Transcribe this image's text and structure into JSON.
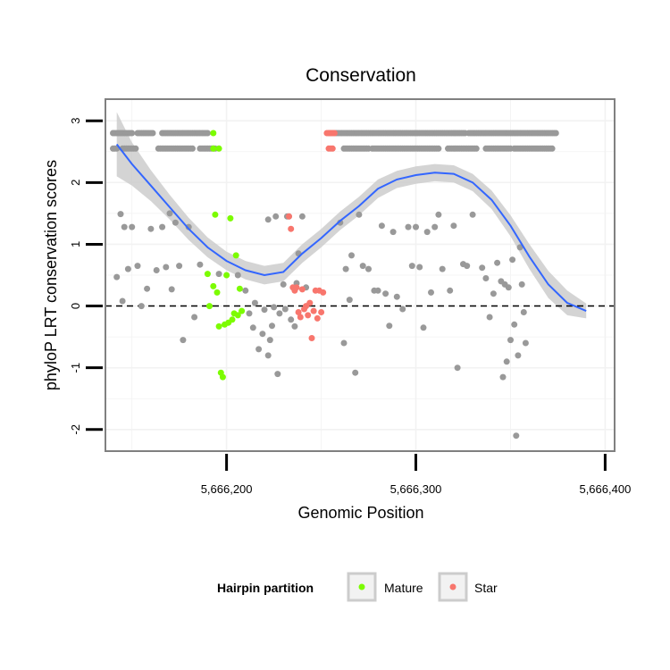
{
  "chart_data": {
    "type": "scatter",
    "title": "Conservation",
    "xlabel": "Genomic Position",
    "ylabel": "phyloP LRT conservation scores",
    "xlim": [
      5666136,
      5666405
    ],
    "ylim": [
      -2.35,
      3.35
    ],
    "x_ticks": [
      5666200,
      5666300,
      5666400
    ],
    "x_tick_labels": [
      "5,666,200",
      "5,666,300",
      "5,666,400"
    ],
    "y_ticks": [
      -2,
      -1,
      0,
      1,
      2,
      3
    ],
    "y_tick_labels": [
      "-2",
      "-1",
      "0",
      "1",
      "2",
      "3"
    ],
    "reference_line": {
      "y": 0,
      "style": "dashed"
    },
    "colors": {
      "other": "#999999",
      "mature": "#7CFC00",
      "star": "#F8766D",
      "smooth": "#3366FF",
      "ribbon": "#CCCCCC",
      "grid": "#F2F2F2",
      "border": "#808080",
      "dashed": "#000000"
    },
    "legend": {
      "title": "Hairpin partition",
      "position": "bottom",
      "entries": [
        {
          "label": "Mature",
          "color": "#7CFC00"
        },
        {
          "label": "Star",
          "color": "#F8766D"
        }
      ]
    },
    "top_row_1": {
      "y": 2.8,
      "segments": [
        [
          5666140,
          5666150
        ],
        [
          5666153,
          5666161
        ],
        [
          5666166,
          5666190
        ],
        [
          5666254,
          5666326
        ],
        [
          5666328,
          5666374
        ]
      ],
      "star_segment": [
        5666253,
        5666257
      ],
      "mature_x": 5666193
    },
    "top_row_2": {
      "y": 2.55,
      "segments": [
        [
          5666140,
          5666142
        ],
        [
          5666145,
          5666152
        ],
        [
          5666164,
          5666170
        ],
        [
          5666171,
          5666182
        ],
        [
          5666186,
          5666194
        ],
        [
          5666262,
          5666275
        ],
        [
          5666277,
          5666288
        ],
        [
          5666289,
          5666312
        ],
        [
          5666317,
          5666332
        ],
        [
          5666337,
          5666350
        ],
        [
          5666352,
          5666372
        ]
      ],
      "star_segment": [
        5666254,
        5666256
      ],
      "mature_x": [
        5666193,
        5666196
      ]
    },
    "series": [
      {
        "name": "Other",
        "points": [
          [
            5666142,
            0.47
          ],
          [
            5666144,
            1.49
          ],
          [
            5666146,
            1.28
          ],
          [
            5666148,
            0.6
          ],
          [
            5666145,
            0.08
          ],
          [
            5666150,
            1.28
          ],
          [
            5666153,
            0.65
          ],
          [
            5666155,
            0.0
          ],
          [
            5666158,
            0.28
          ],
          [
            5666160,
            1.25
          ],
          [
            5666163,
            0.58
          ],
          [
            5666166,
            1.28
          ],
          [
            5666168,
            0.63
          ],
          [
            5666170,
            1.5
          ],
          [
            5666171,
            0.27
          ],
          [
            5666173,
            1.35
          ],
          [
            5666175,
            0.65
          ],
          [
            5666177,
            -0.55
          ],
          [
            5666180,
            1.28
          ],
          [
            5666183,
            -0.18
          ],
          [
            5666186,
            0.67
          ],
          [
            5666196,
            0.52
          ],
          [
            5666206,
            0.5
          ],
          [
            5666210,
            0.25
          ],
          [
            5666212,
            -0.12
          ],
          [
            5666214,
            -0.35
          ],
          [
            5666215,
            0.05
          ],
          [
            5666217,
            -0.7
          ],
          [
            5666219,
            -0.45
          ],
          [
            5666220,
            -0.06
          ],
          [
            5666222,
            1.4
          ],
          [
            5666222,
            -0.8
          ],
          [
            5666223,
            -0.55
          ],
          [
            5666224,
            -0.32
          ],
          [
            5666225,
            -0.02
          ],
          [
            5666226,
            1.45
          ],
          [
            5666227,
            -1.1
          ],
          [
            5666228,
            -0.12
          ],
          [
            5666230,
            0.35
          ],
          [
            5666231,
            -0.05
          ],
          [
            5666232,
            1.45
          ],
          [
            5666233,
            1.45
          ],
          [
            5666234,
            -0.22
          ],
          [
            5666236,
            -0.33
          ],
          [
            5666237,
            0.37
          ],
          [
            5666238,
            0.85
          ],
          [
            5666240,
            1.45
          ],
          [
            5666242,
            0.3
          ],
          [
            5666260,
            1.35
          ],
          [
            5666262,
            -0.6
          ],
          [
            5666263,
            0.6
          ],
          [
            5666265,
            0.1
          ],
          [
            5666266,
            0.82
          ],
          [
            5666268,
            -1.08
          ],
          [
            5666270,
            1.48
          ],
          [
            5666272,
            0.65
          ],
          [
            5666275,
            0.6
          ],
          [
            5666278,
            0.25
          ],
          [
            5666280,
            0.25
          ],
          [
            5666282,
            1.3
          ],
          [
            5666284,
            0.2
          ],
          [
            5666286,
            -0.32
          ],
          [
            5666288,
            1.2
          ],
          [
            5666290,
            0.15
          ],
          [
            5666293,
            -0.05
          ],
          [
            5666296,
            1.28
          ],
          [
            5666298,
            0.65
          ],
          [
            5666300,
            1.28
          ],
          [
            5666302,
            0.63
          ],
          [
            5666304,
            -0.35
          ],
          [
            5666306,
            1.2
          ],
          [
            5666308,
            0.22
          ],
          [
            5666310,
            1.28
          ],
          [
            5666312,
            1.48
          ],
          [
            5666314,
            0.6
          ],
          [
            5666318,
            0.25
          ],
          [
            5666320,
            1.3
          ],
          [
            5666322,
            -1.0
          ],
          [
            5666325,
            0.68
          ],
          [
            5666327,
            0.65
          ],
          [
            5666330,
            1.48
          ],
          [
            5666335,
            0.62
          ],
          [
            5666337,
            0.45
          ],
          [
            5666339,
            -0.18
          ],
          [
            5666341,
            0.2
          ],
          [
            5666343,
            0.7
          ],
          [
            5666345,
            0.4
          ],
          [
            5666346,
            -1.15
          ],
          [
            5666347,
            0.35
          ],
          [
            5666348,
            -0.9
          ],
          [
            5666349,
            0.3
          ],
          [
            5666350,
            -0.55
          ],
          [
            5666351,
            0.75
          ],
          [
            5666352,
            -0.3
          ],
          [
            5666353,
            -2.1
          ],
          [
            5666354,
            -0.8
          ],
          [
            5666355,
            0.95
          ],
          [
            5666356,
            0.35
          ],
          [
            5666357,
            -0.1
          ],
          [
            5666358,
            -0.6
          ]
        ]
      },
      {
        "name": "Mature",
        "points": [
          [
            5666190,
            0.52
          ],
          [
            5666191,
            0.0
          ],
          [
            5666193,
            0.32
          ],
          [
            5666194,
            1.48
          ],
          [
            5666195,
            0.22
          ],
          [
            5666196,
            -0.33
          ],
          [
            5666197,
            -1.08
          ],
          [
            5666198,
            -1.15
          ],
          [
            5666199,
            -0.3
          ],
          [
            5666200,
            0.5
          ],
          [
            5666201,
            -0.27
          ],
          [
            5666202,
            1.42
          ],
          [
            5666203,
            -0.22
          ],
          [
            5666204,
            -0.12
          ],
          [
            5666205,
            0.82
          ],
          [
            5666206,
            -0.15
          ],
          [
            5666207,
            0.28
          ],
          [
            5666208,
            -0.08
          ]
        ]
      },
      {
        "name": "Star",
        "points": [
          [
            5666233,
            1.45
          ],
          [
            5666234,
            1.25
          ],
          [
            5666235,
            0.3
          ],
          [
            5666236,
            0.25
          ],
          [
            5666237,
            0.3
          ],
          [
            5666238,
            -0.1
          ],
          [
            5666239,
            -0.18
          ],
          [
            5666240,
            0.27
          ],
          [
            5666241,
            -0.05
          ],
          [
            5666242,
            0.0
          ],
          [
            5666243,
            -0.15
          ],
          [
            5666244,
            0.05
          ],
          [
            5666245,
            -0.52
          ],
          [
            5666246,
            -0.08
          ],
          [
            5666247,
            0.25
          ],
          [
            5666248,
            -0.2
          ],
          [
            5666249,
            0.25
          ],
          [
            5666250,
            -0.1
          ],
          [
            5666251,
            0.22
          ]
        ]
      }
    ],
    "smooth": {
      "x": [
        5666142,
        5666150,
        5666160,
        5666170,
        5666180,
        5666190,
        5666200,
        5666210,
        5666220,
        5666230,
        5666240,
        5666250,
        5666260,
        5666270,
        5666280,
        5666290,
        5666300,
        5666310,
        5666320,
        5666330,
        5666340,
        5666350,
        5666360,
        5666370,
        5666380,
        5666390
      ],
      "y": [
        2.62,
        2.3,
        1.95,
        1.6,
        1.25,
        0.95,
        0.73,
        0.58,
        0.5,
        0.55,
        0.85,
        1.1,
        1.38,
        1.62,
        1.9,
        2.05,
        2.12,
        2.16,
        2.14,
        2.0,
        1.72,
        1.3,
        0.8,
        0.35,
        0.05,
        -0.08
      ],
      "ribbon_halfwidth": [
        0.52,
        0.35,
        0.25,
        0.2,
        0.18,
        0.16,
        0.15,
        0.15,
        0.15,
        0.15,
        0.15,
        0.15,
        0.15,
        0.15,
        0.15,
        0.14,
        0.14,
        0.14,
        0.14,
        0.14,
        0.15,
        0.17,
        0.2,
        0.22,
        0.2,
        0.12
      ]
    }
  }
}
